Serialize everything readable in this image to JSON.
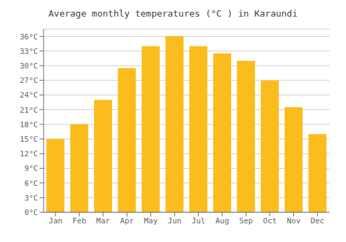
{
  "chart_data": {
    "type": "bar",
    "title": "Average monthly temperatures (°C ) in Karaundi",
    "categories": [
      "Jan",
      "Feb",
      "Mar",
      "Apr",
      "May",
      "Jun",
      "Jul",
      "Aug",
      "Sep",
      "Oct",
      "Nov",
      "Dec"
    ],
    "values": [
      15,
      18,
      23,
      29.5,
      34,
      36,
      34,
      32.5,
      31,
      27,
      21.5,
      16
    ],
    "color": "#FBBC1D",
    "ylim": [
      0,
      37.5
    ],
    "yticks": [
      {
        "value": 0,
        "label": "0°C"
      },
      {
        "value": 3,
        "label": "3°C"
      },
      {
        "value": 6,
        "label": "6°C"
      },
      {
        "value": 9,
        "label": "9°C"
      },
      {
        "value": 12,
        "label": "12°C"
      },
      {
        "value": 15,
        "label": "15°C"
      },
      {
        "value": 18,
        "label": "18°C"
      },
      {
        "value": 21,
        "label": "21°C"
      },
      {
        "value": 24,
        "label": "24°C"
      },
      {
        "value": 27,
        "label": "27°C"
      },
      {
        "value": 30,
        "label": "30°C"
      },
      {
        "value": 33,
        "label": "33°C"
      },
      {
        "value": 36,
        "label": "36°C"
      }
    ],
    "grid": true
  }
}
